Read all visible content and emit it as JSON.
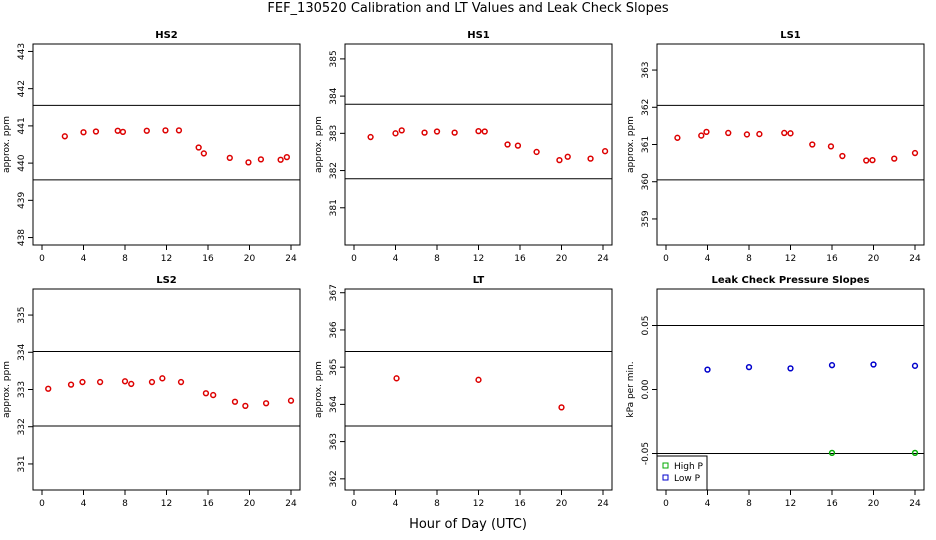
{
  "title": "FEF_130520  Calibration and LT Values and Leak Check Slopes",
  "xlabel": "Hour of Day (UTC)",
  "chart_data": [
    {
      "type": "scatter",
      "title": "HS2",
      "ylabel": "approx. ppm",
      "xlim": [
        0,
        24
      ],
      "ylim": [
        437.8,
        443.2
      ],
      "xticks": [
        0,
        4,
        8,
        12,
        16,
        20,
        24
      ],
      "yticks": [
        438,
        439,
        440,
        441,
        442,
        443
      ],
      "hlines": [
        441.55,
        439.55
      ],
      "series": [
        {
          "color": "#dd0000",
          "marker": "circle",
          "x": [
            2.2,
            4.0,
            5.2,
            7.3,
            7.8,
            10.1,
            11.9,
            13.2,
            15.1,
            15.6,
            18.1,
            19.9,
            21.1,
            23.0,
            23.6
          ],
          "y": [
            440.72,
            440.83,
            440.85,
            440.87,
            440.84,
            440.87,
            440.88,
            440.88,
            440.42,
            440.26,
            440.14,
            440.02,
            440.1,
            440.09,
            440.16
          ]
        }
      ]
    },
    {
      "type": "scatter",
      "title": "HS1",
      "ylabel": "approx. ppm",
      "xlim": [
        0,
        24
      ],
      "ylim": [
        380.0,
        385.4
      ],
      "xticks": [
        0,
        4,
        8,
        12,
        16,
        20,
        24
      ],
      "yticks": [
        381,
        382,
        383,
        384,
        385
      ],
      "hlines": [
        383.78,
        381.78
      ],
      "series": [
        {
          "color": "#dd0000",
          "marker": "circle",
          "x": [
            1.6,
            4.0,
            4.6,
            6.8,
            8.0,
            9.7,
            12.0,
            12.6,
            14.8,
            15.8,
            17.6,
            19.8,
            20.6,
            22.8,
            24.2
          ],
          "y": [
            382.9,
            383.0,
            383.08,
            383.02,
            383.05,
            383.02,
            383.06,
            383.05,
            382.7,
            382.67,
            382.5,
            382.28,
            382.37,
            382.32,
            382.52
          ]
        }
      ]
    },
    {
      "type": "scatter",
      "title": "LS1",
      "ylabel": "approx. ppm",
      "xlim": [
        0,
        24
      ],
      "ylim": [
        358.3,
        363.7
      ],
      "xticks": [
        0,
        4,
        8,
        12,
        16,
        20,
        24
      ],
      "yticks": [
        359,
        360,
        361,
        362,
        363
      ],
      "hlines": [
        362.05,
        360.05
      ],
      "series": [
        {
          "color": "#dd0000",
          "marker": "circle",
          "x": [
            1.1,
            3.4,
            3.9,
            6.0,
            7.8,
            9.0,
            11.4,
            12.0,
            14.1,
            15.9,
            17.0,
            19.3,
            19.9,
            22.0,
            24.0
          ],
          "y": [
            361.18,
            361.24,
            361.34,
            361.31,
            361.27,
            361.28,
            361.31,
            361.3,
            361.0,
            360.95,
            360.69,
            360.57,
            360.58,
            360.62,
            360.77
          ]
        }
      ]
    },
    {
      "type": "scatter",
      "title": "LS2",
      "ylabel": "approx. ppm",
      "xlim": [
        0,
        24
      ],
      "ylim": [
        330.3,
        335.7
      ],
      "xticks": [
        0,
        4,
        8,
        12,
        16,
        20,
        24
      ],
      "yticks": [
        331,
        332,
        333,
        334,
        335
      ],
      "hlines": [
        334.02,
        332.02
      ],
      "series": [
        {
          "color": "#dd0000",
          "marker": "circle",
          "x": [
            0.6,
            2.8,
            3.9,
            5.6,
            8.0,
            8.6,
            10.6,
            11.6,
            13.4,
            15.8,
            16.5,
            18.6,
            19.6,
            21.6,
            24.0
          ],
          "y": [
            333.02,
            333.13,
            333.2,
            333.2,
            333.22,
            333.15,
            333.2,
            333.3,
            333.2,
            332.9,
            332.85,
            332.67,
            332.56,
            332.63,
            332.7
          ]
        }
      ]
    },
    {
      "type": "scatter",
      "title": "LT",
      "ylabel": "approx. ppm",
      "xlim": [
        0,
        24
      ],
      "ylim": [
        361.7,
        367.1
      ],
      "xticks": [
        0,
        4,
        8,
        12,
        16,
        20,
        24
      ],
      "yticks": [
        362,
        363,
        364,
        365,
        366,
        367
      ],
      "hlines": [
        365.42,
        363.42
      ],
      "series": [
        {
          "color": "#dd0000",
          "marker": "circle",
          "x": [
            4.1,
            12.0,
            20.0
          ],
          "y": [
            364.7,
            364.66,
            363.92
          ]
        }
      ]
    },
    {
      "type": "scatter",
      "title": "Leak Check Pressure Slopes",
      "ylabel": "kPa per min.",
      "xlim": [
        0,
        24
      ],
      "ylim": [
        -0.0785,
        0.0785
      ],
      "xticks": [
        0,
        4,
        8,
        12,
        16,
        20,
        24
      ],
      "yticks": [
        -0.05,
        0.0,
        0.05
      ],
      "ytick_labels": [
        "-0.05",
        "0.00",
        "0.05"
      ],
      "hlines": [
        0.05,
        -0.05
      ],
      "legend": {
        "position": "bottom-left",
        "entries": [
          "High P",
          "Low P"
        ]
      },
      "series": [
        {
          "name": "High P",
          "color": "#00aa00",
          "marker": "circle",
          "x": [
            16.0,
            24.0
          ],
          "y": [
            -0.0495,
            -0.0495
          ]
        },
        {
          "name": "Low P",
          "color": "#0000cc",
          "marker": "circle",
          "x": [
            4.0,
            8.0,
            12.0,
            16.0,
            20.0,
            24.0
          ],
          "y": [
            0.0155,
            0.0175,
            0.0165,
            0.019,
            0.0195,
            0.0185
          ]
        }
      ]
    }
  ]
}
